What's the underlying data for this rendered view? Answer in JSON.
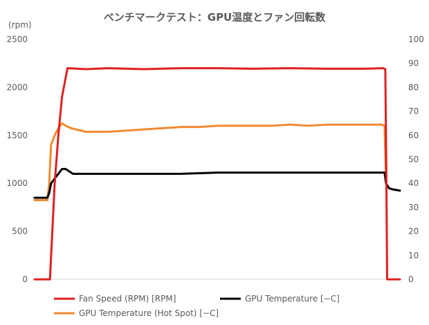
{
  "chart_data": {
    "type": "line",
    "title": "ベンチマークテスト：GPU温度とファン回転数",
    "y_left": {
      "unit": "(rpm)",
      "range": [
        0,
        2500
      ],
      "ticks": [
        0,
        500,
        1000,
        1500,
        2000,
        2500
      ]
    },
    "y_right": {
      "range": [
        0,
        100
      ],
      "ticks": [
        0,
        10,
        20,
        30,
        40,
        50,
        60,
        70,
        80,
        90,
        100
      ]
    },
    "x": {
      "range": [
        0,
        100
      ],
      "tick_labels": false,
      "note": "relative time, no labels shown"
    },
    "grid": "none",
    "legend": "bottom",
    "series": [
      {
        "name": "Fan Speed (RPM) [RPM]",
        "axis": "left",
        "color": "#e01e1e",
        "points": [
          [
            0,
            0
          ],
          [
            4,
            0
          ],
          [
            4.2,
            0
          ],
          [
            5.5,
            1000
          ],
          [
            6.5,
            1500
          ],
          [
            7.5,
            1900
          ],
          [
            8.5,
            2100
          ],
          [
            9,
            2200
          ],
          [
            14,
            2190
          ],
          [
            20,
            2200
          ],
          [
            30,
            2190
          ],
          [
            40,
            2200
          ],
          [
            50,
            2200
          ],
          [
            60,
            2195
          ],
          [
            70,
            2200
          ],
          [
            80,
            2195
          ],
          [
            90,
            2195
          ],
          [
            95.5,
            2200
          ],
          [
            96,
            2190
          ],
          [
            96.3,
            1000
          ],
          [
            96.5,
            0
          ],
          [
            100,
            0
          ]
        ]
      },
      {
        "name": "GPU Temperature [−C]",
        "axis": "right",
        "color": "#000000",
        "points": [
          [
            0,
            34
          ],
          [
            3.5,
            34
          ],
          [
            4,
            36
          ],
          [
            4.5,
            40
          ],
          [
            5.5,
            42
          ],
          [
            6.5,
            44
          ],
          [
            7.5,
            46
          ],
          [
            8.5,
            46
          ],
          [
            9.5,
            45
          ],
          [
            10.5,
            44
          ],
          [
            13,
            44
          ],
          [
            20,
            44
          ],
          [
            30,
            44
          ],
          [
            40,
            44
          ],
          [
            50,
            44.5
          ],
          [
            60,
            44.5
          ],
          [
            70,
            44.5
          ],
          [
            80,
            44.5
          ],
          [
            90,
            44.5
          ],
          [
            95,
            44.5
          ],
          [
            95.8,
            44.5
          ],
          [
            96.2,
            40
          ],
          [
            97,
            38
          ],
          [
            98,
            37.5
          ],
          [
            100,
            37
          ]
        ]
      },
      {
        "name": "GPU Temperature (Hot Spot) [−C]",
        "axis": "right",
        "color": "#f08a2f",
        "points": [
          [
            0,
            33
          ],
          [
            3.5,
            33
          ],
          [
            4,
            40
          ],
          [
            4.5,
            56
          ],
          [
            5.5,
            60
          ],
          [
            6.5,
            63
          ],
          [
            7.5,
            65
          ],
          [
            8.5,
            64
          ],
          [
            10,
            63
          ],
          [
            14,
            61.5
          ],
          [
            20,
            61.5
          ],
          [
            25,
            62
          ],
          [
            30,
            62.5
          ],
          [
            35,
            63
          ],
          [
            40,
            63.5
          ],
          [
            45,
            63.5
          ],
          [
            50,
            64
          ],
          [
            55,
            64
          ],
          [
            60,
            64
          ],
          [
            65,
            64
          ],
          [
            70,
            64.5
          ],
          [
            75,
            64
          ],
          [
            80,
            64.5
          ],
          [
            85,
            64.5
          ],
          [
            90,
            64.5
          ],
          [
            95,
            64.5
          ],
          [
            95.8,
            64
          ],
          [
            96.2,
            40
          ],
          [
            97,
            38
          ],
          [
            98,
            37.5
          ],
          [
            100,
            37
          ]
        ]
      }
    ]
  }
}
